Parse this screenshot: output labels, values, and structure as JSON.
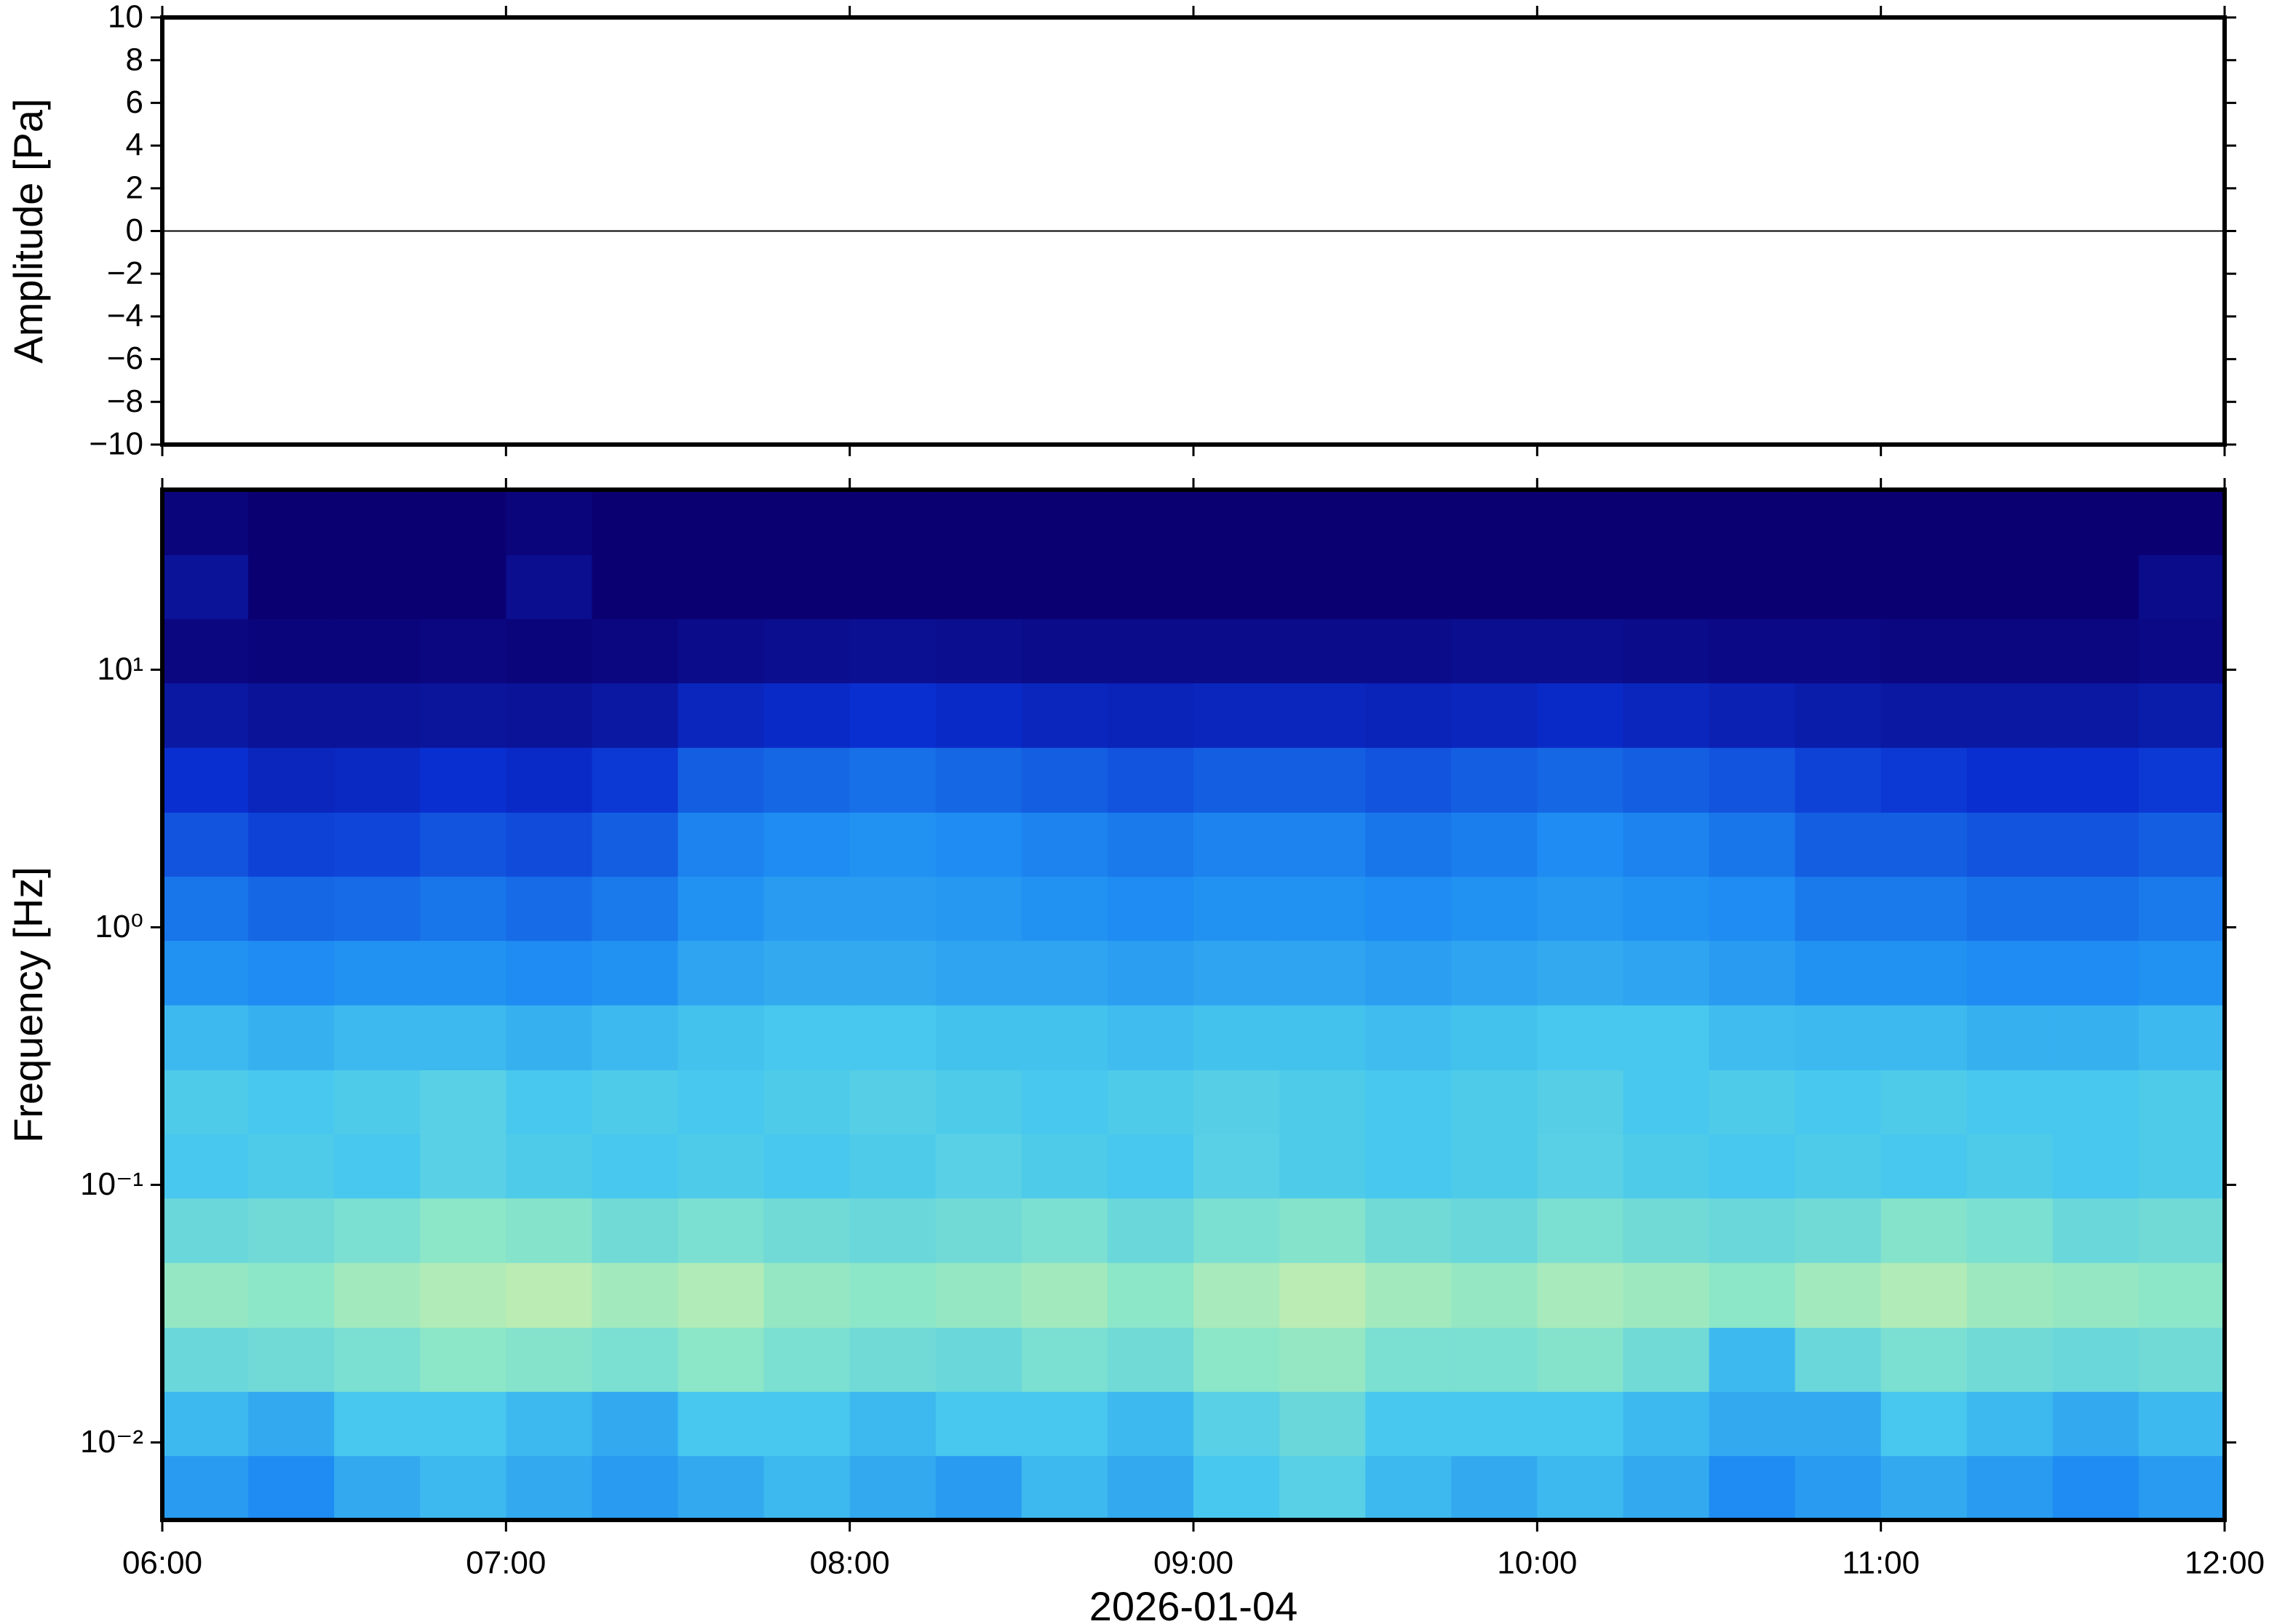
{
  "chart_data": [
    {
      "type": "line",
      "ylabel": "Amplitude [Pa]",
      "x": [
        6,
        12
      ],
      "series": [
        {
          "color": "#000000",
          "values": [
            0,
            0
          ]
        }
      ],
      "xlim": [
        6,
        12
      ],
      "ylim": [
        -10,
        10
      ],
      "yticks": [
        {
          "value": -10,
          "label": "−10"
        },
        {
          "value": -8,
          "label": "−8"
        },
        {
          "value": -6,
          "label": "−6"
        },
        {
          "value": -4,
          "label": "−4"
        },
        {
          "value": -2,
          "label": "−2"
        },
        0,
        2,
        4,
        6,
        8,
        10
      ]
    },
    {
      "type": "heatmap",
      "xlabel": "2026-01-04",
      "ylabel": "Frequency [Hz]",
      "xlim": [
        6,
        12
      ],
      "xticks": [
        {
          "value": 6,
          "label": "06:00"
        },
        {
          "value": 7,
          "label": "07:00"
        },
        {
          "value": 8,
          "label": "08:00"
        },
        {
          "value": 9,
          "label": "09:00"
        },
        {
          "value": 10,
          "label": "10:00"
        },
        {
          "value": 11,
          "label": "11:00"
        },
        {
          "value": 12,
          "label": "12:00"
        }
      ],
      "ylim": [
        0.005,
        50
      ],
      "log_y": true,
      "yticks": [
        {
          "value": 0.01,
          "label": "10⁻²"
        },
        {
          "value": 0.1,
          "label": "10⁻¹"
        },
        {
          "value": 1,
          "label": "10⁰"
        },
        {
          "value": 10,
          "label": "10¹"
        }
      ],
      "y_bins": [
        0.005,
        0.0089,
        0.0158,
        0.028,
        0.05,
        0.089,
        0.158,
        0.28,
        0.5,
        0.89,
        1.58,
        2.8,
        5,
        8.9,
        15.8,
        28,
        50
      ],
      "colorscale": [
        "#0b0072",
        "#0a2fd0",
        "#1e8cf2",
        "#48c8ee",
        "#8ce6c8",
        "#e8f29e"
      ],
      "z": [
        [
          0.45,
          0.4,
          0.5,
          0.55,
          0.5,
          0.45,
          0.5,
          0.55,
          0.5,
          0.45,
          0.55,
          0.5,
          0.6,
          0.65,
          0.55,
          0.5,
          0.55,
          0.5,
          0.4,
          0.45,
          0.5,
          0.45,
          0.4,
          0.45
        ],
        [
          0.55,
          0.5,
          0.6,
          0.6,
          0.55,
          0.5,
          0.6,
          0.6,
          0.55,
          0.6,
          0.6,
          0.55,
          0.65,
          0.7,
          0.6,
          0.6,
          0.6,
          0.55,
          0.5,
          0.5,
          0.6,
          0.55,
          0.5,
          0.55
        ],
        [
          0.7,
          0.72,
          0.75,
          0.8,
          0.78,
          0.75,
          0.8,
          0.75,
          0.72,
          0.7,
          0.75,
          0.72,
          0.8,
          0.82,
          0.75,
          0.75,
          0.78,
          0.72,
          0.55,
          0.7,
          0.75,
          0.72,
          0.7,
          0.72
        ],
        [
          0.82,
          0.8,
          0.85,
          0.88,
          0.9,
          0.85,
          0.88,
          0.82,
          0.8,
          0.82,
          0.85,
          0.8,
          0.86,
          0.9,
          0.85,
          0.82,
          0.86,
          0.84,
          0.8,
          0.85,
          0.88,
          0.84,
          0.82,
          0.8
        ],
        [
          0.7,
          0.72,
          0.75,
          0.8,
          0.78,
          0.72,
          0.75,
          0.72,
          0.7,
          0.72,
          0.75,
          0.7,
          0.75,
          0.78,
          0.72,
          0.7,
          0.75,
          0.72,
          0.7,
          0.72,
          0.78,
          0.75,
          0.7,
          0.72
        ],
        [
          0.6,
          0.62,
          0.6,
          0.65,
          0.62,
          0.6,
          0.62,
          0.6,
          0.62,
          0.65,
          0.62,
          0.6,
          0.65,
          0.62,
          0.6,
          0.62,
          0.65,
          0.62,
          0.6,
          0.62,
          0.6,
          0.62,
          0.6,
          0.62
        ],
        [
          0.62,
          0.6,
          0.62,
          0.65,
          0.6,
          0.62,
          0.6,
          0.62,
          0.64,
          0.62,
          0.6,
          0.62,
          0.64,
          0.62,
          0.6,
          0.62,
          0.64,
          0.6,
          0.62,
          0.6,
          0.62,
          0.6,
          0.6,
          0.62
        ],
        [
          0.55,
          0.52,
          0.55,
          0.55,
          0.52,
          0.55,
          0.58,
          0.6,
          0.6,
          0.58,
          0.58,
          0.56,
          0.58,
          0.58,
          0.56,
          0.58,
          0.6,
          0.6,
          0.56,
          0.55,
          0.55,
          0.52,
          0.52,
          0.55
        ],
        [
          0.42,
          0.4,
          0.42,
          0.42,
          0.4,
          0.42,
          0.48,
          0.5,
          0.5,
          0.48,
          0.48,
          0.46,
          0.48,
          0.48,
          0.46,
          0.48,
          0.5,
          0.48,
          0.45,
          0.42,
          0.42,
          0.4,
          0.4,
          0.42
        ],
        [
          0.35,
          0.32,
          0.33,
          0.35,
          0.33,
          0.36,
          0.42,
          0.45,
          0.45,
          0.44,
          0.42,
          0.4,
          0.42,
          0.42,
          0.4,
          0.42,
          0.44,
          0.42,
          0.4,
          0.36,
          0.36,
          0.34,
          0.34,
          0.36
        ],
        [
          0.28,
          0.24,
          0.25,
          0.28,
          0.26,
          0.3,
          0.38,
          0.4,
          0.42,
          0.4,
          0.38,
          0.36,
          0.38,
          0.38,
          0.35,
          0.37,
          0.4,
          0.38,
          0.35,
          0.3,
          0.3,
          0.28,
          0.28,
          0.3
        ],
        [
          0.2,
          0.16,
          0.17,
          0.2,
          0.18,
          0.22,
          0.3,
          0.32,
          0.34,
          0.32,
          0.3,
          0.28,
          0.3,
          0.3,
          0.28,
          0.3,
          0.32,
          0.3,
          0.28,
          0.24,
          0.22,
          0.2,
          0.2,
          0.22
        ],
        [
          0.1,
          0.08,
          0.08,
          0.09,
          0.08,
          0.1,
          0.16,
          0.18,
          0.2,
          0.18,
          0.16,
          0.15,
          0.16,
          0.16,
          0.15,
          0.16,
          0.18,
          0.16,
          0.14,
          0.12,
          0.1,
          0.1,
          0.1,
          0.12
        ],
        [
          0.03,
          0.02,
          0.02,
          0.03,
          0.02,
          0.03,
          0.05,
          0.06,
          0.07,
          0.06,
          0.05,
          0.05,
          0.05,
          0.05,
          0.05,
          0.06,
          0.06,
          0.05,
          0.04,
          0.04,
          0.03,
          0.03,
          0.03,
          0.04
        ],
        [
          0.08,
          0,
          0,
          0,
          0.06,
          0,
          0,
          0,
          0,
          0,
          0,
          0,
          0,
          0,
          0,
          0,
          0,
          0,
          0,
          0,
          0,
          0,
          0,
          0.05
        ],
        [
          0.02,
          0,
          0,
          0,
          0.02,
          0,
          0,
          0,
          0,
          0,
          0,
          0,
          0,
          0,
          0,
          0,
          0,
          0,
          0,
          0,
          0,
          0,
          0,
          0
        ]
      ]
    }
  ]
}
